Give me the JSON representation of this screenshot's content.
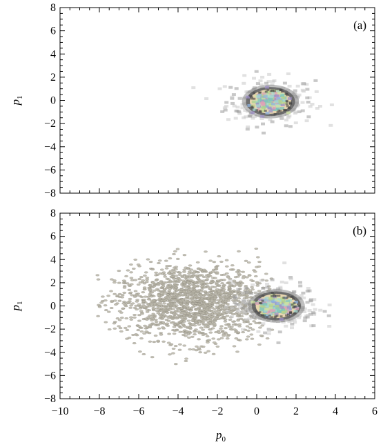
{
  "chart_data": [
    {
      "type": "heatmap",
      "panel_label": "(a)",
      "xlim": [
        -10,
        6
      ],
      "ylim": [
        -8,
        8
      ],
      "xticks": [],
      "yticks": [
        "−8",
        "−6",
        "−4",
        "−2",
        "0",
        "2",
        "4",
        "6",
        "8"
      ],
      "xlabel": "",
      "ylabel": "p",
      "ylabel_sub": "1",
      "grid": false,
      "clusters": [
        {
          "center": [
            0.7,
            -0.1
          ],
          "spread": 0.9,
          "description": "dense Gaussian-like blob shown as multicolored density"
        }
      ],
      "sparse_points": false
    },
    {
      "type": "heatmap",
      "panel_label": "(b)",
      "xlim": [
        -10,
        6
      ],
      "ylim": [
        -8,
        8
      ],
      "xticks": [
        "−10",
        "−8",
        "−6",
        "−4",
        "−2",
        "0",
        "2",
        "4",
        "6"
      ],
      "yticks": [
        "−8",
        "−6",
        "−4",
        "−2",
        "0",
        "2",
        "4",
        "6",
        "8"
      ],
      "xlabel": "p",
      "xlabel_sub": "0",
      "ylabel": "p",
      "ylabel_sub": "1",
      "grid": false,
      "clusters": [
        {
          "center": [
            1.0,
            0.0
          ],
          "spread": 0.9,
          "description": "dense Gaussian-like blob shown as multicolored density"
        }
      ],
      "sparse_points": true,
      "sparse_region": {
        "x": [
          -8,
          1
        ],
        "y": [
          -6,
          5
        ]
      }
    }
  ],
  "colors": {
    "background": "#ffffff",
    "axes": "#000000",
    "scatter_fill": "#b9b6a8",
    "scatter_stroke": "#8a877c",
    "halo": "#c8c8c8",
    "dark_ring": "#555555",
    "beige": "#e8d6b0",
    "teal": "#7fc6b8",
    "green": "#b7d38a",
    "purple": "#9e8fc7",
    "pink": "#e0a3b5",
    "blue": "#8fb3e0"
  }
}
